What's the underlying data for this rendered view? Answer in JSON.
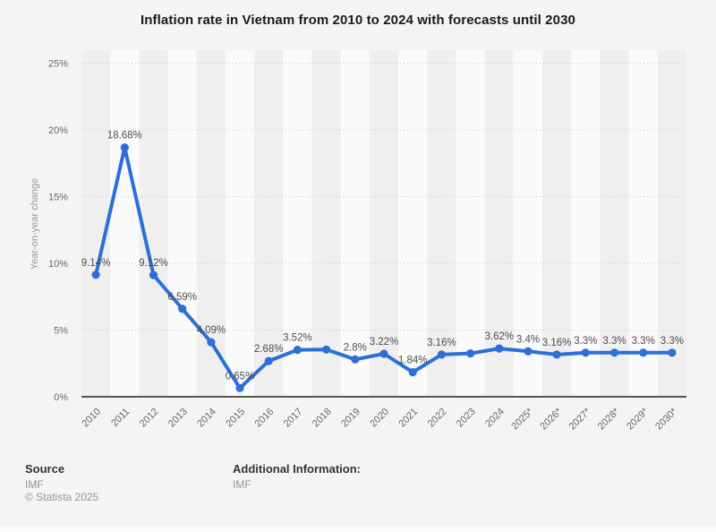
{
  "header": {
    "title": "Inflation rate in Vietnam from 2010 to 2024 with forecasts until 2030"
  },
  "chart_data": {
    "type": "line",
    "title": "Inflation rate in Vietnam from 2010 to 2024 with forecasts until 2030",
    "xlabel": "",
    "ylabel": "Year-on-year change",
    "ylim": [
      0,
      25
    ],
    "yticks": [
      {
        "value": 0,
        "label": "0%"
      },
      {
        "value": 5,
        "label": "5%"
      },
      {
        "value": 10,
        "label": "10%"
      },
      {
        "value": 15,
        "label": "15%"
      },
      {
        "value": 20,
        "label": "20%"
      },
      {
        "value": 25,
        "label": "25%"
      }
    ],
    "categories": [
      "2010",
      "2011",
      "2012",
      "2013",
      "2014",
      "2015",
      "2016",
      "2017",
      "2018",
      "2019",
      "2020",
      "2021",
      "2022",
      "2023",
      "2024",
      "2025*",
      "2026*",
      "2027*",
      "2028*",
      "2029*",
      "2030*"
    ],
    "series": [
      {
        "name": "Inflation rate",
        "values": [
          9.14,
          18.68,
          9.12,
          6.59,
          4.09,
          0.65,
          2.68,
          3.52,
          3.54,
          2.8,
          3.22,
          1.84,
          3.16,
          3.25,
          3.62,
          3.4,
          3.16,
          3.3,
          3.3,
          3.3,
          3.3
        ],
        "point_labels": [
          "9.14%",
          "18.68%",
          "9.12%",
          "6.59%",
          "4.09%",
          "0.65%",
          "2.68%",
          "3.52%",
          "",
          "2.8%",
          "3.22%",
          "1.84%",
          "3.16%",
          "",
          "3.62%",
          "3.4%",
          "3.16%",
          "3.3%",
          "3.3%",
          "3.3%",
          "3.3%"
        ]
      }
    ],
    "grid": "dotted-horizontal",
    "legend": "none",
    "plot_background": "alternating-vertical-bands"
  },
  "colors": {
    "line": "#2d6fd9",
    "band_light": "#fafafa",
    "band_dark": "#efefef",
    "grid": "#c8c8c8",
    "axis": "#555555",
    "tick_text": "#666666",
    "axis_title_text": "#999999",
    "data_label_text": "#4d4d4d",
    "page_background": "#f4f4f4"
  },
  "footer": {
    "source_heading": "Source",
    "source_value": "IMF",
    "copyright": "© Statista 2025",
    "additional_heading": "Additional Information:",
    "additional_value": "IMF"
  }
}
